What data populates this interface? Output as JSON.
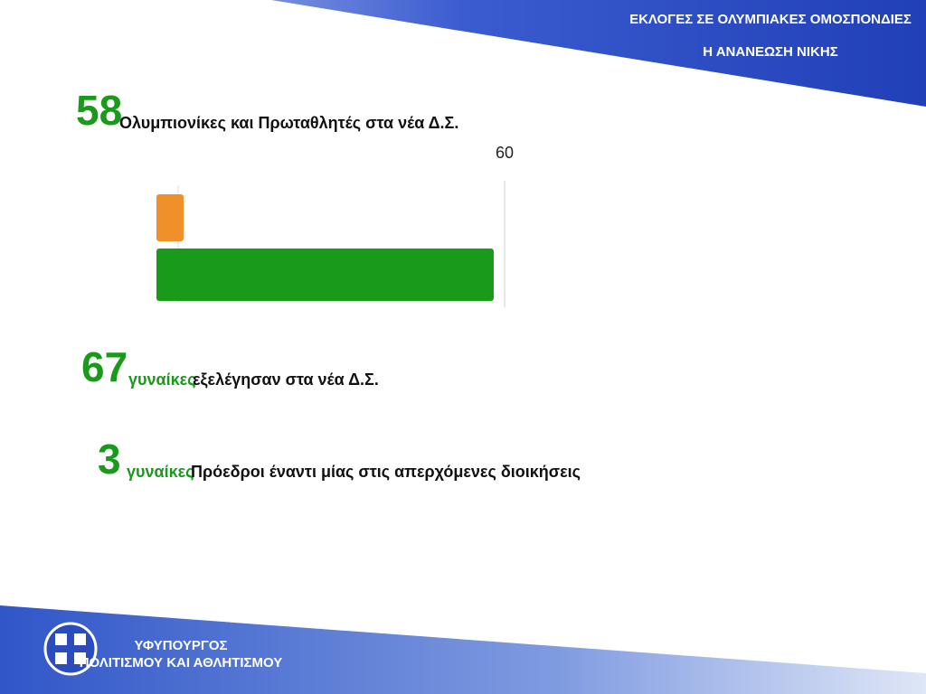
{
  "header": {
    "line1": "ΕΚΛΟΓΕΣ ΣΕ ΟΛΥΜΠΙΑΚΕΣ ΟΜΟΣΠΟΝΔΙΕΣ",
    "line2": "Η ΑΝΑΝΕΩΣΗ ΝΙΚΗΣ"
  },
  "stats": [
    {
      "number": 58,
      "text": "Ολυμπιονίκες και Πρωταθλητές στα νέα Δ.Σ."
    },
    {
      "number": 67,
      "highlight": "γυναίκες",
      "text": "εξελέγησαν στα νέα Δ.Σ."
    },
    {
      "number": 3,
      "highlight": "γυναίκες",
      "text": "Πρόεδροι έναντι μίας στις απερχόμενες διοικήσεις"
    }
  ],
  "chart_data": {
    "type": "hbar",
    "values": [
      1,
      58
    ],
    "colors": [
      "#f0902a",
      "#1a9a1a"
    ],
    "xlim": [
      0,
      60
    ],
    "xticks": [
      60
    ]
  },
  "footer": {
    "line1": "ΥΦΥΠΟΥΡΓΟΣ",
    "line2": "ΠΟΛΙΤΙΣΜΟΥ ΚΑΙ ΑΘΛΗΤΙΣΜΟΥ"
  }
}
